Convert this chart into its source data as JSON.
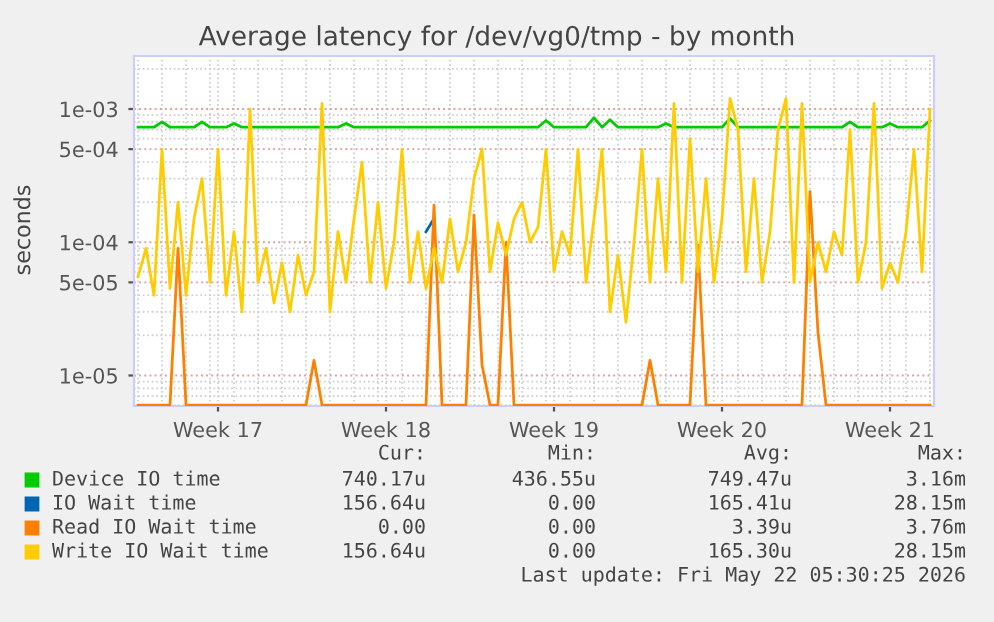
{
  "chart_data": {
    "type": "line",
    "title": "Average latency for /dev/vg0/tmp - by month",
    "ylabel": "seconds",
    "log": "y",
    "grid": true,
    "legend": "bottom",
    "marker": "none",
    "line_style": "solid",
    "ylim": [
      5.9e-06,
      0.0025
    ],
    "yticks": [
      {
        "value": 1e-05,
        "label": "1e-05"
      },
      {
        "value": 5e-05,
        "label": "5e-05"
      },
      {
        "value": 0.0001,
        "label": "1e-04"
      },
      {
        "value": 0.0005,
        "label": "5e-04"
      },
      {
        "value": 0.001,
        "label": "1e-03"
      }
    ],
    "categories": [
      null,
      null,
      null,
      null,
      null,
      null,
      null,
      null,
      null,
      null,
      "Week 17",
      null,
      null,
      null,
      null,
      null,
      null,
      null,
      null,
      null,
      null,
      null,
      null,
      null,
      null,
      null,
      null,
      null,
      null,
      null,
      null,
      "Week 18",
      null,
      null,
      null,
      null,
      null,
      null,
      null,
      null,
      null,
      null,
      null,
      null,
      null,
      null,
      null,
      null,
      null,
      null,
      null,
      null,
      "Week 19",
      null,
      null,
      null,
      null,
      null,
      null,
      null,
      null,
      null,
      null,
      null,
      null,
      null,
      null,
      null,
      null,
      null,
      null,
      null,
      null,
      "Week 20",
      null,
      null,
      null,
      null,
      null,
      null,
      null,
      null,
      null,
      null,
      null,
      null,
      null,
      null,
      null,
      null,
      null,
      null,
      null,
      null,
      "Week 21",
      null,
      null,
      null,
      null,
      null
    ],
    "series": [
      {
        "name": "Device IO time",
        "color": "#00cc00",
        "values": [
          0.00073,
          0.00073,
          0.00073,
          0.0008,
          0.00073,
          0.00073,
          0.00073,
          0.00073,
          0.0008,
          0.00073,
          0.00073,
          0.00073,
          0.00078,
          0.00073,
          0.00073,
          0.00073,
          0.00073,
          0.00073,
          0.00073,
          0.00073,
          0.00073,
          0.00073,
          0.00073,
          0.00073,
          0.00073,
          0.00073,
          0.00078,
          0.00073,
          0.00073,
          0.00073,
          0.00073,
          0.00073,
          0.00073,
          0.00073,
          0.00073,
          0.00073,
          0.00073,
          0.00073,
          0.00073,
          0.00073,
          0.00073,
          0.00073,
          0.00073,
          0.00073,
          0.00073,
          0.00073,
          0.00073,
          0.00073,
          0.00073,
          0.00073,
          0.00073,
          0.00082,
          0.00073,
          0.00073,
          0.00073,
          0.00073,
          0.00073,
          0.00086,
          0.00073,
          0.00083,
          0.00073,
          0.00073,
          0.00073,
          0.00073,
          0.00073,
          0.00073,
          0.00078,
          0.00073,
          0.00073,
          0.00073,
          0.00073,
          0.00073,
          0.00073,
          0.00073,
          0.00085,
          0.00073,
          0.00073,
          0.00073,
          0.00073,
          0.00073,
          0.00073,
          0.00073,
          0.00073,
          0.00073,
          0.00073,
          0.00073,
          0.00073,
          0.00073,
          0.00073,
          0.0008,
          0.00073,
          0.00073,
          0.00073,
          0.00073,
          0.00078,
          0.00073,
          0.00073,
          0.00073,
          0.00073,
          0.00082
        ]
      },
      {
        "name": "IO Wait time",
        "color": "#0066b3",
        "values": [
          null,
          null,
          null,
          null,
          null,
          null,
          null,
          null,
          null,
          null,
          null,
          null,
          null,
          null,
          null,
          null,
          null,
          null,
          null,
          null,
          null,
          null,
          null,
          null,
          null,
          null,
          null,
          null,
          null,
          null,
          null,
          null,
          null,
          null,
          null,
          null,
          0.00012,
          0.00015,
          null,
          null,
          null,
          null,
          null,
          null,
          null,
          null,
          null,
          null,
          null,
          null,
          null,
          null,
          null,
          null,
          null,
          null,
          null,
          null,
          null,
          null,
          null,
          null,
          null,
          null,
          null,
          null,
          null,
          null,
          null,
          null,
          null,
          null,
          null,
          null,
          null,
          null,
          null,
          null,
          null,
          null,
          null,
          null,
          null,
          null,
          null,
          null,
          null,
          null,
          null,
          null,
          null,
          null,
          null,
          null,
          null,
          null,
          null,
          null,
          null,
          null
        ]
      },
      {
        "name": "Read IO Wait time",
        "color": "#ff8000",
        "values": [
          6e-06,
          6e-06,
          6e-06,
          6e-06,
          6e-06,
          9e-05,
          6e-06,
          6e-06,
          6e-06,
          6e-06,
          6e-06,
          6e-06,
          6e-06,
          6e-06,
          6e-06,
          6e-06,
          6e-06,
          6e-06,
          6e-06,
          6e-06,
          6e-06,
          6e-06,
          1.3e-05,
          6e-06,
          6e-06,
          6e-06,
          6e-06,
          6e-06,
          6e-06,
          6e-06,
          6e-06,
          6e-06,
          6e-06,
          6e-06,
          6e-06,
          6e-06,
          6e-06,
          0.00019,
          6e-06,
          6e-06,
          6e-06,
          6e-06,
          0.00016,
          1.2e-05,
          6e-06,
          6e-06,
          0.0001,
          6e-06,
          6e-06,
          6e-06,
          6e-06,
          6e-06,
          6e-06,
          6e-06,
          6e-06,
          6e-06,
          6e-06,
          6e-06,
          6e-06,
          6e-06,
          6e-06,
          6e-06,
          6e-06,
          6e-06,
          1.3e-05,
          6e-06,
          6e-06,
          6e-06,
          6e-06,
          6e-06,
          9.5e-05,
          6e-06,
          6e-06,
          6e-06,
          6e-06,
          6e-06,
          6e-06,
          6e-06,
          6e-06,
          6e-06,
          6e-06,
          6e-06,
          6e-06,
          6e-06,
          0.00024,
          2.1e-05,
          6e-06,
          6e-06,
          6e-06,
          6e-06,
          6e-06,
          6e-06,
          6e-06,
          6e-06,
          6e-06,
          6e-06,
          6e-06,
          6e-06,
          6e-06,
          6e-06
        ]
      },
      {
        "name": "Write IO Wait time",
        "color": "#ffcc00",
        "values": [
          5.5e-05,
          9e-05,
          4e-05,
          0.0005,
          4.5e-05,
          0.0002,
          4e-05,
          0.00015,
          0.0003,
          5e-05,
          0.0005,
          4e-05,
          0.00012,
          3e-05,
          0.001,
          5e-05,
          9e-05,
          3.5e-05,
          7e-05,
          3e-05,
          8e-05,
          4e-05,
          6e-05,
          0.0011,
          3e-05,
          0.00012,
          5e-05,
          0.00015,
          0.0004,
          5e-05,
          0.0002,
          4.5e-05,
          0.0001,
          0.0005,
          5e-05,
          0.00012,
          4.5e-05,
          9e-05,
          5e-05,
          0.00015,
          6e-05,
          0.0001,
          0.0003,
          0.0005,
          6e-05,
          0.00014,
          8e-05,
          0.00015,
          0.0002,
          0.0001,
          0.00013,
          0.0005,
          6e-05,
          0.00012,
          8e-05,
          0.0005,
          5e-05,
          0.00015,
          0.0005,
          3e-05,
          8e-05,
          2.5e-05,
          0.0001,
          0.0005,
          5e-05,
          0.0003,
          6e-05,
          0.0011,
          5e-05,
          0.0006,
          6e-05,
          0.0003,
          5e-05,
          0.00015,
          0.0012,
          0.0007,
          6e-05,
          0.0003,
          5e-05,
          0.00012,
          0.0007,
          0.0012,
          5e-05,
          0.0011,
          5e-05,
          0.0001,
          6e-05,
          0.00012,
          8e-05,
          0.0007,
          5e-05,
          0.0001,
          0.0011,
          4.5e-05,
          7e-05,
          5e-05,
          0.00012,
          0.0005,
          6e-05,
          0.001
        ]
      }
    ],
    "annotations": [
      "Cur:",
      "Min:",
      "Avg:",
      "Max:",
      "740.17u",
      "436.55u",
      "749.47u",
      "3.16m",
      "156.64u",
      "0.00",
      "165.41u",
      "28.15m",
      "0.00",
      "0.00",
      "3.39u",
      "3.76m",
      "156.64u",
      "0.00",
      "165.30u",
      "28.15m",
      "Last update: Fri May 22 05:30:25 2026"
    ]
  }
}
